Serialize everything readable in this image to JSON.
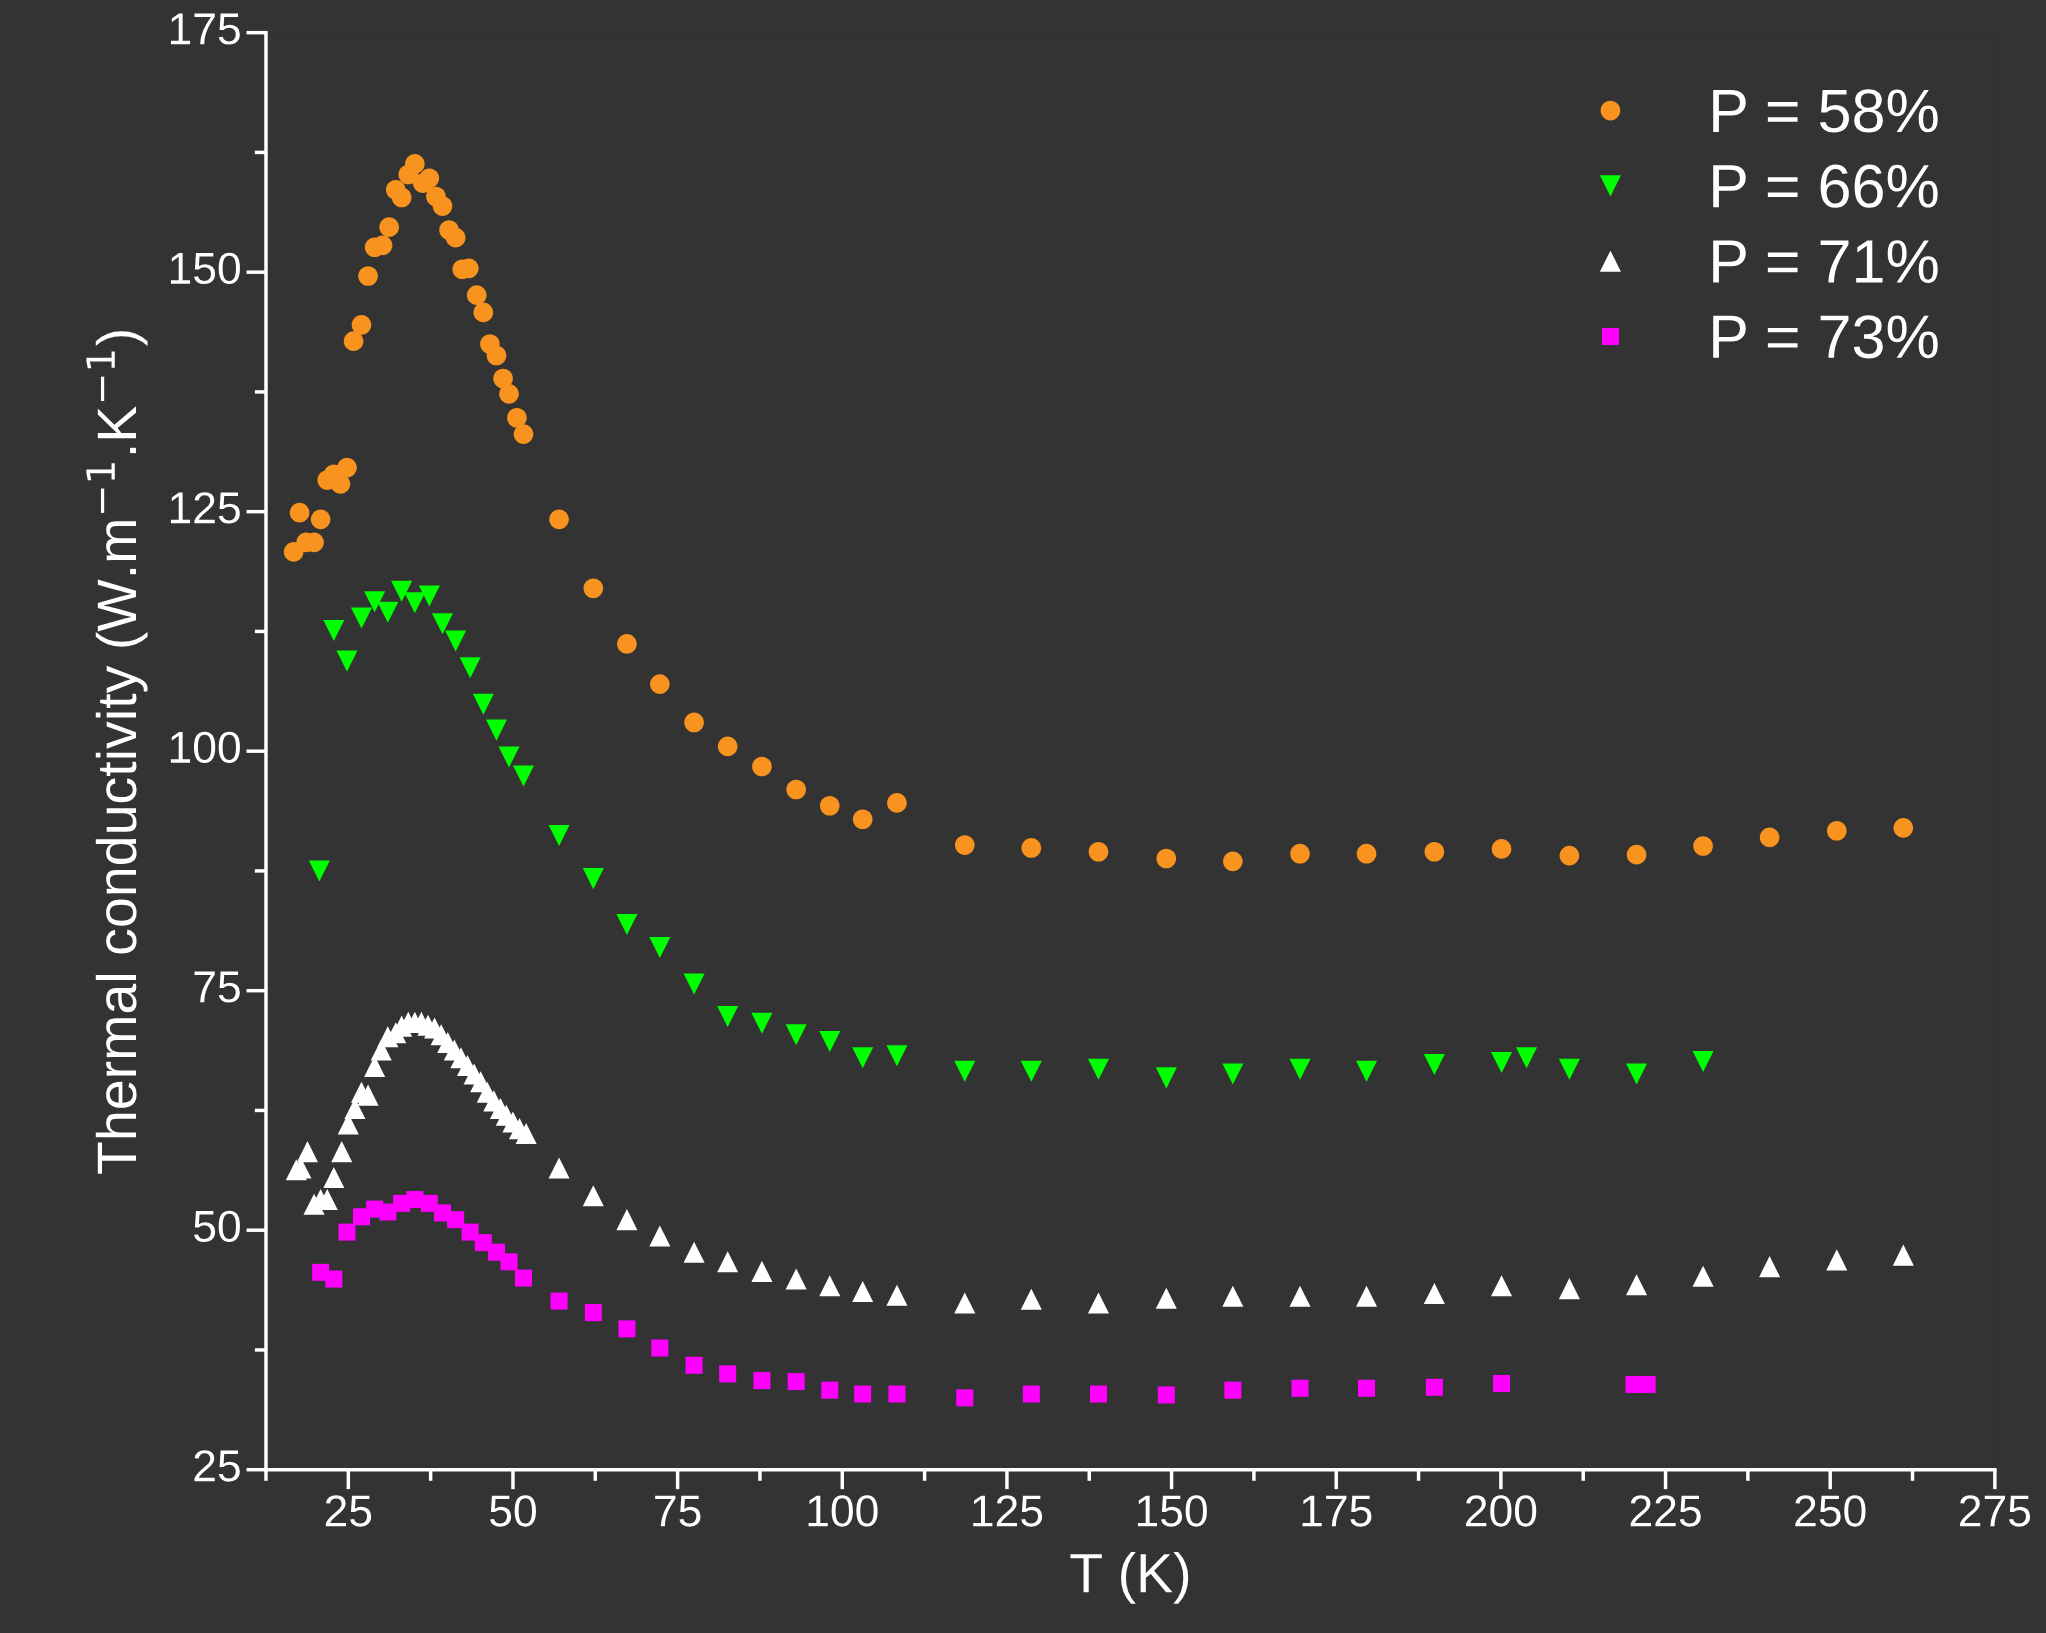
{
  "chart_data": {
    "type": "scatter",
    "xlabel": "T (K)",
    "ylabel": "Thermal conductivity (W.m$^{−1}$.K$^{−1}$)",
    "xlim": [
      12.5,
      275
    ],
    "ylim": [
      25,
      175
    ],
    "xticks": [
      25,
      50,
      75,
      100,
      125,
      150,
      175,
      200,
      225,
      250,
      275
    ],
    "yticks": [
      25,
      50,
      75,
      100,
      125,
      150,
      175
    ],
    "grid": false,
    "legend": "top right",
    "series": [
      {
        "name": "P = 58%",
        "color": "#f7931e",
        "marker": "circle",
        "x": [
          16.7,
          17.6,
          18.6,
          19.8,
          20.8,
          21.8,
          22.8,
          23.8,
          24.8,
          25.8,
          27.0,
          28.0,
          29.0,
          30.2,
          31.2,
          32.2,
          33.1,
          34.1,
          35.1,
          36.3,
          37.3,
          38.3,
          39.3,
          40.3,
          41.3,
          42.3,
          43.3,
          44.5,
          45.5,
          46.5,
          47.5,
          48.5,
          49.4,
          50.6,
          51.6,
          57.0,
          62.2,
          67.3,
          72.3,
          77.5,
          82.6,
          87.8,
          93.0,
          98.1,
          103.1,
          108.3,
          118.6,
          128.7,
          138.9,
          149.2,
          159.3,
          169.5,
          179.6,
          189.9,
          200.1,
          210.4,
          220.6,
          230.7,
          240.8,
          251.0,
          261.1
        ],
        "values": [
          120.8,
          124.9,
          121.8,
          121.8,
          124.2,
          128.3,
          128.9,
          127.9,
          129.6,
          142.8,
          144.5,
          149.6,
          152.6,
          152.8,
          154.7,
          158.6,
          157.8,
          160.2,
          161.3,
          159.3,
          159.8,
          157.9,
          156.9,
          154.4,
          153.6,
          150.3,
          150.4,
          147.6,
          145.8,
          142.5,
          141.3,
          138.9,
          137.3,
          134.8,
          133.1,
          124.2,
          117.0,
          111.2,
          107.0,
          103.0,
          100.5,
          98.4,
          96.0,
          94.3,
          92.9,
          94.6,
          90.2,
          89.9,
          89.5,
          88.8,
          88.5,
          89.3,
          89.3,
          89.5,
          89.8,
          89.1,
          89.2,
          90.1,
          91.0,
          91.7,
          92.0
        ]
      },
      {
        "name": "P = 66%",
        "color": "#00ff00",
        "marker": "triangle_down",
        "x": [
          20.6,
          22.8,
          24.8,
          27.0,
          29.0,
          31.0,
          33.1,
          35.1,
          37.3,
          39.3,
          41.3,
          43.5,
          45.5,
          47.5,
          49.4,
          51.6,
          57.0,
          62.2,
          67.3,
          72.3,
          77.5,
          82.6,
          87.8,
          93.0,
          98.1,
          103.1,
          108.3,
          118.6,
          128.7,
          138.9,
          149.2,
          159.3,
          169.5,
          179.6,
          189.9,
          200.1,
          203.9,
          210.4,
          220.6,
          230.7
        ],
        "values": [
          87.5,
          112.6,
          109.4,
          113.9,
          115.6,
          114.5,
          116.7,
          115.5,
          116.2,
          113.3,
          111.5,
          108.7,
          104.9,
          102.2,
          99.4,
          97.4,
          91.2,
          86.7,
          81.9,
          79.5,
          75.7,
          72.3,
          71.6,
          70.4,
          69.7,
          68.0,
          68.2,
          66.6,
          66.6,
          66.8,
          65.9,
          66.3,
          66.8,
          66.6,
          67.3,
          67.5,
          68.0,
          66.8,
          66.3,
          67.6
        ]
      },
      {
        "name": "P = 71%",
        "color": "#ffffff",
        "marker": "triangle",
        "x": [
          17.1,
          17.8,
          18.8,
          19.8,
          20.8,
          21.8,
          22.8,
          24.0,
          25.0,
          26.0,
          27.0,
          28.0,
          29.0,
          30.0,
          31.0,
          32.2,
          33.1,
          34.1,
          35.1,
          36.1,
          37.1,
          38.1,
          39.1,
          40.1,
          41.1,
          42.1,
          43.1,
          44.1,
          45.1,
          46.1,
          47.1,
          48.1,
          49.0,
          50.0,
          51.0,
          52.0,
          57.0,
          62.2,
          67.3,
          72.3,
          77.5,
          82.6,
          87.8,
          93.0,
          98.1,
          103.1,
          108.3,
          118.6,
          128.7,
          138.9,
          149.2,
          159.3,
          169.5,
          179.6,
          189.9,
          200.1,
          210.4,
          220.6,
          230.7,
          240.8,
          251.0,
          261.1
        ],
        "values": [
          56.3,
          56.5,
          58.2,
          52.7,
          53.2,
          53.2,
          55.5,
          58.2,
          61.1,
          62.7,
          64.4,
          64.1,
          67.1,
          68.8,
          70.2,
          70.6,
          71.3,
          71.7,
          71.7,
          71.7,
          71.4,
          71.1,
          70.4,
          69.6,
          68.8,
          68.0,
          67.2,
          66.3,
          65.5,
          64.4,
          63.5,
          62.7,
          62.0,
          61.3,
          60.6,
          60.1,
          56.5,
          53.6,
          51.1,
          49.4,
          47.7,
          46.7,
          45.7,
          44.9,
          44.2,
          43.6,
          43.2,
          42.4,
          42.8,
          42.4,
          42.9,
          43.1,
          43.1,
          43.1,
          43.4,
          44.2,
          43.9,
          44.3,
          45.2,
          46.2,
          46.9,
          47.4
        ]
      },
      {
        "name": "P = 73%",
        "color": "#ff00ff",
        "marker": "square",
        "x": [
          20.8,
          22.8,
          24.8,
          27.0,
          29.0,
          31.0,
          33.1,
          35.1,
          37.3,
          39.3,
          41.3,
          43.5,
          45.5,
          47.5,
          49.4,
          51.6,
          57.0,
          62.2,
          67.3,
          72.3,
          77.5,
          82.6,
          87.8,
          93.0,
          98.1,
          103.1,
          108.3,
          118.6,
          128.7,
          138.9,
          149.2,
          159.3,
          169.5,
          179.6,
          189.9,
          200.1,
          220.2,
          222.2
        ],
        "values": [
          45.6,
          44.9,
          49.8,
          51.4,
          52.2,
          51.9,
          52.8,
          53.2,
          52.8,
          51.8,
          51.1,
          49.8,
          48.7,
          47.7,
          46.7,
          45.0,
          42.6,
          41.4,
          39.7,
          37.7,
          35.9,
          35.0,
          34.3,
          34.2,
          33.3,
          32.9,
          32.9,
          32.5,
          32.9,
          32.9,
          32.8,
          33.3,
          33.5,
          33.5,
          33.6,
          34.0,
          33.9,
          33.9
        ]
      }
    ]
  }
}
